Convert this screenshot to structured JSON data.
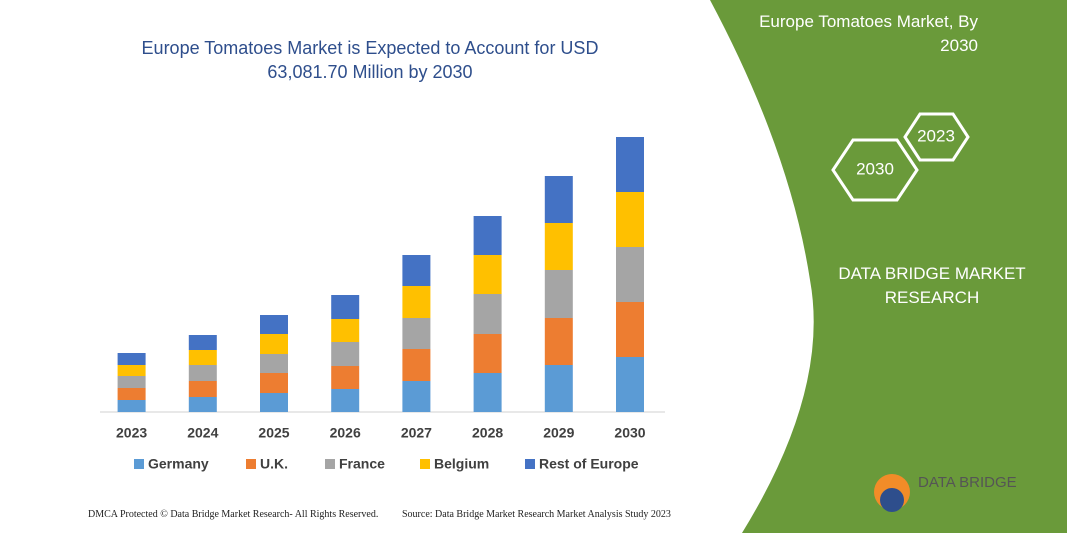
{
  "chart_data": {
    "type": "bar",
    "stacked": true,
    "title": "Europe Tomatoes Market is Expected to Account for USD 63,081.70 Million by 2030",
    "categories": [
      "2023",
      "2024",
      "2025",
      "2026",
      "2027",
      "2028",
      "2029",
      "2030"
    ],
    "series": [
      {
        "name": "Germany",
        "color": "#5b9bd5",
        "values": [
          12,
          15,
          19,
          23,
          31,
          39,
          47,
          55
        ]
      },
      {
        "name": "U.K.",
        "color": "#ed7d31",
        "values": [
          12,
          16,
          20,
          23,
          32,
          39,
          47,
          55
        ]
      },
      {
        "name": "France",
        "color": "#a5a5a5",
        "values": [
          12,
          16,
          19,
          24,
          31,
          40,
          48,
          55
        ]
      },
      {
        "name": "Belgium",
        "color": "#ffc000",
        "values": [
          11,
          15,
          20,
          23,
          32,
          39,
          47,
          55
        ]
      },
      {
        "name": "Rest of Europe",
        "color": "#4472c4",
        "values": [
          12,
          15,
          19,
          24,
          31,
          39,
          47,
          55
        ]
      }
    ],
    "ylim": [
      0,
      280
    ]
  },
  "panel": {
    "title": "Europe Tomatoes Market, By 2030",
    "hexagons": [
      "2023",
      "2030"
    ],
    "brand": "DATA BRIDGE MARKET RESEARCH",
    "logo": "DATA BRIDGE"
  },
  "footer": {
    "left": "DMCA Protected © Data Bridge Market Research- All Rights Reserved.",
    "right": "Source: Data Bridge Market Research Market Analysis Study 2023"
  }
}
